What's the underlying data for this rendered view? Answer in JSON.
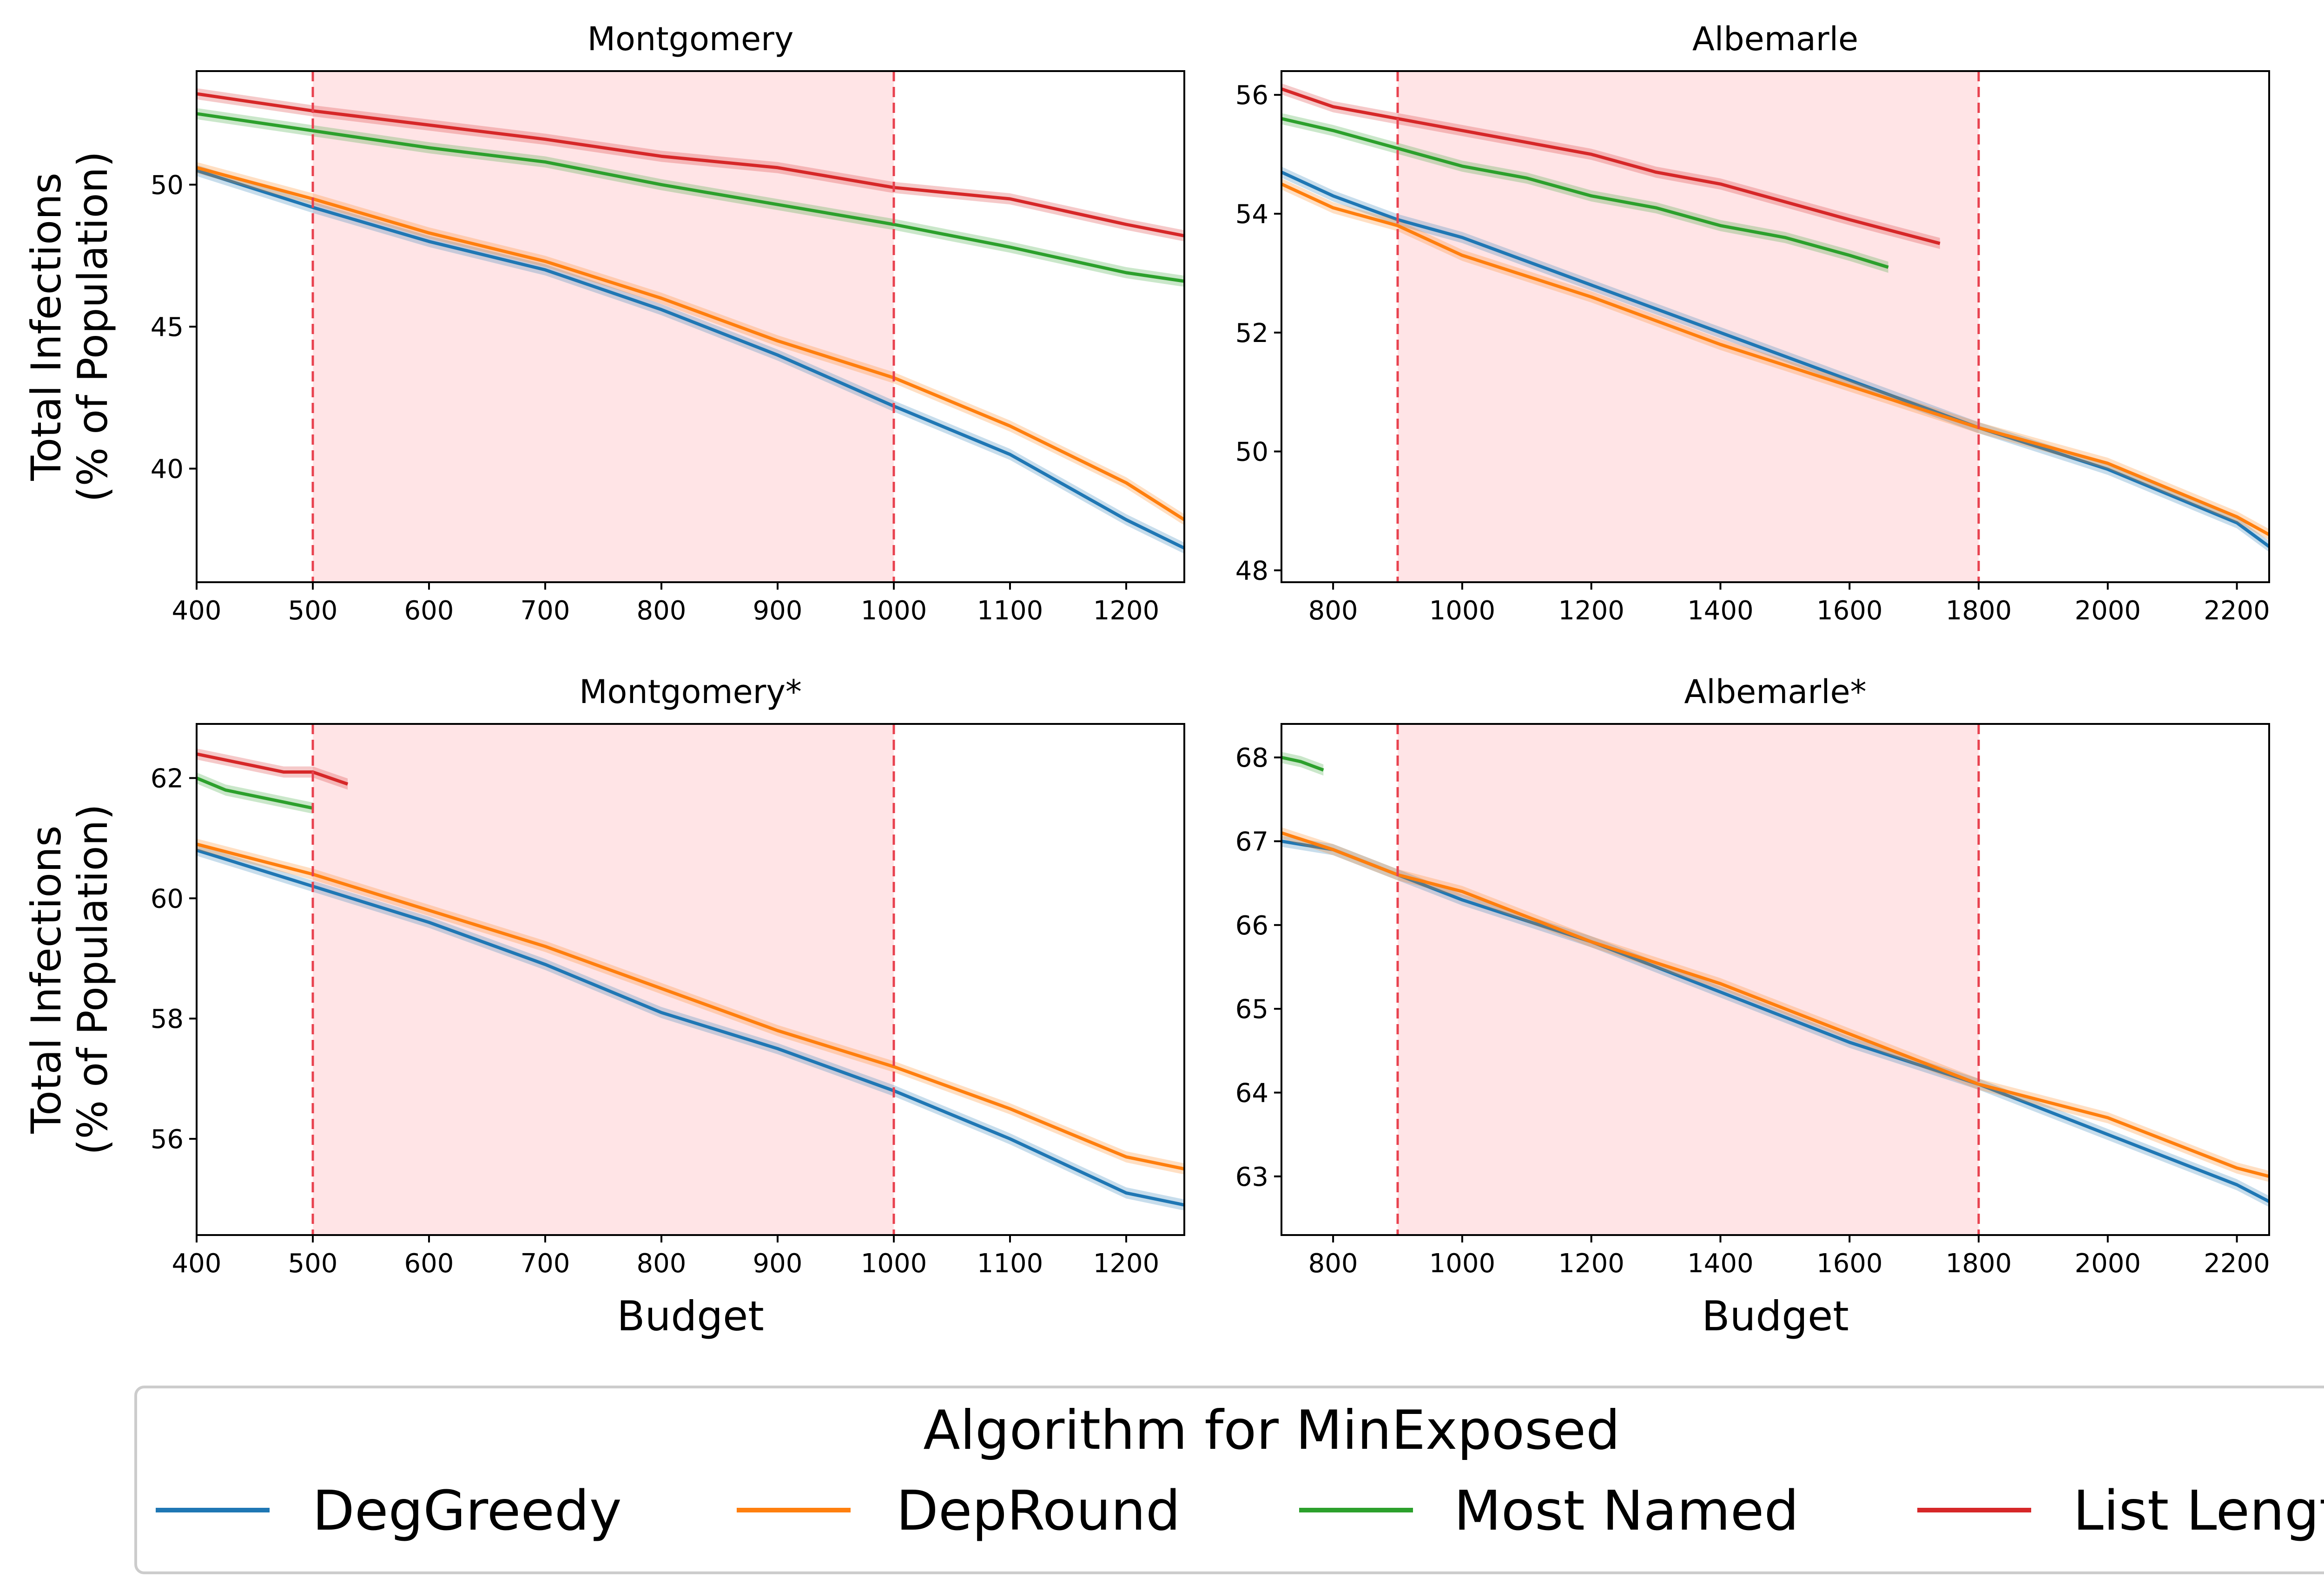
{
  "legend": {
    "title": "Algorithm for MinExposed",
    "items": [
      {
        "label": "DegGreedy",
        "color": "#1f77b4"
      },
      {
        "label": "DepRound",
        "color": "#ff7f0e"
      },
      {
        "label": "Most Named",
        "color": "#2ca02c"
      },
      {
        "label": "List Length",
        "color": "#d62728"
      }
    ]
  },
  "chart_data": [
    {
      "type": "line",
      "title": "Montgomery",
      "xlabel": "",
      "ylabel": "Total Infections\n(% of Population)",
      "xlim": [
        400,
        1250
      ],
      "ylim": [
        36,
        54
      ],
      "xticks": [
        400,
        500,
        600,
        700,
        800,
        900,
        1000,
        1100,
        1200
      ],
      "yticks": [
        40,
        45,
        50
      ],
      "shaded_region": [
        500,
        1000
      ],
      "series": [
        {
          "name": "DegGreedy",
          "x": [
            400,
            500,
            600,
            700,
            800,
            900,
            1000,
            1100,
            1200,
            1250
          ],
          "y": [
            50.5,
            49.2,
            48.0,
            47.0,
            45.6,
            44.0,
            42.2,
            40.5,
            38.2,
            37.2
          ]
        },
        {
          "name": "DepRound",
          "x": [
            400,
            500,
            600,
            700,
            800,
            900,
            1000,
            1100,
            1200,
            1250
          ],
          "y": [
            50.6,
            49.5,
            48.3,
            47.3,
            46.0,
            44.5,
            43.2,
            41.5,
            39.5,
            38.2
          ]
        },
        {
          "name": "Most Named",
          "x": [
            400,
            500,
            600,
            700,
            800,
            900,
            1000,
            1100,
            1200,
            1250
          ],
          "y": [
            52.5,
            51.9,
            51.3,
            50.8,
            50.0,
            49.3,
            48.6,
            47.8,
            46.9,
            46.6
          ]
        },
        {
          "name": "List Length",
          "x": [
            400,
            500,
            600,
            700,
            800,
            900,
            1000,
            1100,
            1200,
            1250
          ],
          "y": [
            53.2,
            52.6,
            52.1,
            51.6,
            51.0,
            50.6,
            49.9,
            49.5,
            48.6,
            48.2
          ]
        }
      ]
    },
    {
      "type": "line",
      "title": "Albemarle",
      "xlabel": "",
      "ylabel": "",
      "xlim": [
        720,
        2250
      ],
      "ylim": [
        47.8,
        56.4
      ],
      "xticks": [
        800,
        1000,
        1200,
        1400,
        1600,
        1800,
        2000,
        2200
      ],
      "yticks": [
        48,
        50,
        52,
        54,
        56
      ],
      "shaded_region": [
        900,
        1800
      ],
      "series": [
        {
          "name": "DegGreedy",
          "x": [
            720,
            800,
            900,
            1000,
            1200,
            1400,
            1600,
            1800,
            2000,
            2200,
            2250
          ],
          "y": [
            54.7,
            54.3,
            53.9,
            53.6,
            52.8,
            52.0,
            51.2,
            50.4,
            49.7,
            48.8,
            48.4
          ]
        },
        {
          "name": "DepRound",
          "x": [
            720,
            800,
            900,
            1000,
            1200,
            1400,
            1600,
            1800,
            2000,
            2200,
            2250
          ],
          "y": [
            54.5,
            54.1,
            53.8,
            53.3,
            52.6,
            51.8,
            51.1,
            50.4,
            49.8,
            48.9,
            48.6
          ]
        },
        {
          "name": "Most Named",
          "x": [
            720,
            800,
            900,
            1000,
            1100,
            1200,
            1300,
            1400,
            1500,
            1600,
            1660
          ],
          "y": [
            55.6,
            55.4,
            55.1,
            54.8,
            54.6,
            54.3,
            54.1,
            53.8,
            53.6,
            53.3,
            53.1
          ]
        },
        {
          "name": "List Length",
          "x": [
            720,
            800,
            900,
            1000,
            1100,
            1200,
            1300,
            1400,
            1500,
            1600,
            1740
          ],
          "y": [
            56.1,
            55.8,
            55.6,
            55.4,
            55.2,
            55.0,
            54.7,
            54.5,
            54.2,
            53.9,
            53.5
          ]
        }
      ]
    },
    {
      "type": "line",
      "title": "Montgomery*",
      "xlabel": "Budget",
      "ylabel": "Total Infections\n(% of Population)",
      "xlim": [
        400,
        1250
      ],
      "ylim": [
        54.4,
        62.9
      ],
      "xticks": [
        400,
        500,
        600,
        700,
        800,
        900,
        1000,
        1100,
        1200
      ],
      "yticks": [
        56,
        58,
        60,
        62
      ],
      "shaded_region": [
        500,
        1000
      ],
      "series": [
        {
          "name": "DegGreedy",
          "x": [
            400,
            500,
            600,
            700,
            800,
            900,
            1000,
            1100,
            1200,
            1250
          ],
          "y": [
            60.8,
            60.2,
            59.6,
            58.9,
            58.1,
            57.5,
            56.8,
            56.0,
            55.1,
            54.9
          ]
        },
        {
          "name": "DepRound",
          "x": [
            400,
            500,
            600,
            700,
            800,
            900,
            1000,
            1100,
            1200,
            1250
          ],
          "y": [
            60.9,
            60.4,
            59.8,
            59.2,
            58.5,
            57.8,
            57.2,
            56.5,
            55.7,
            55.5
          ]
        },
        {
          "name": "Most Named",
          "x": [
            400,
            425,
            450,
            475,
            500
          ],
          "y": [
            62.0,
            61.8,
            61.7,
            61.6,
            61.5
          ]
        },
        {
          "name": "List Length",
          "x": [
            400,
            425,
            450,
            475,
            500,
            530
          ],
          "y": [
            62.4,
            62.3,
            62.2,
            62.1,
            62.1,
            61.9
          ]
        }
      ]
    },
    {
      "type": "line",
      "title": "Albemarle*",
      "xlabel": "Budget",
      "ylabel": "",
      "xlim": [
        720,
        2250
      ],
      "ylim": [
        62.3,
        68.4
      ],
      "xticks": [
        800,
        1000,
        1200,
        1400,
        1600,
        1800,
        2000,
        2200
      ],
      "yticks": [
        63,
        64,
        65,
        66,
        67,
        68
      ],
      "shaded_region": [
        900,
        1800
      ],
      "series": [
        {
          "name": "DegGreedy",
          "x": [
            720,
            800,
            900,
            1000,
            1200,
            1400,
            1600,
            1800,
            2000,
            2200,
            2250
          ],
          "y": [
            67.0,
            66.9,
            66.6,
            66.3,
            65.8,
            65.2,
            64.6,
            64.1,
            63.5,
            62.9,
            62.7
          ]
        },
        {
          "name": "DepRound",
          "x": [
            720,
            800,
            900,
            1000,
            1200,
            1400,
            1600,
            1800,
            2000,
            2200,
            2250
          ],
          "y": [
            67.1,
            66.9,
            66.6,
            66.4,
            65.8,
            65.3,
            64.7,
            64.1,
            63.7,
            63.1,
            63.0
          ]
        },
        {
          "name": "Most Named",
          "x": [
            720,
            750,
            785
          ],
          "y": [
            68.0,
            67.95,
            67.85
          ]
        },
        {
          "name": "List Length",
          "x": [],
          "y": []
        }
      ]
    }
  ]
}
